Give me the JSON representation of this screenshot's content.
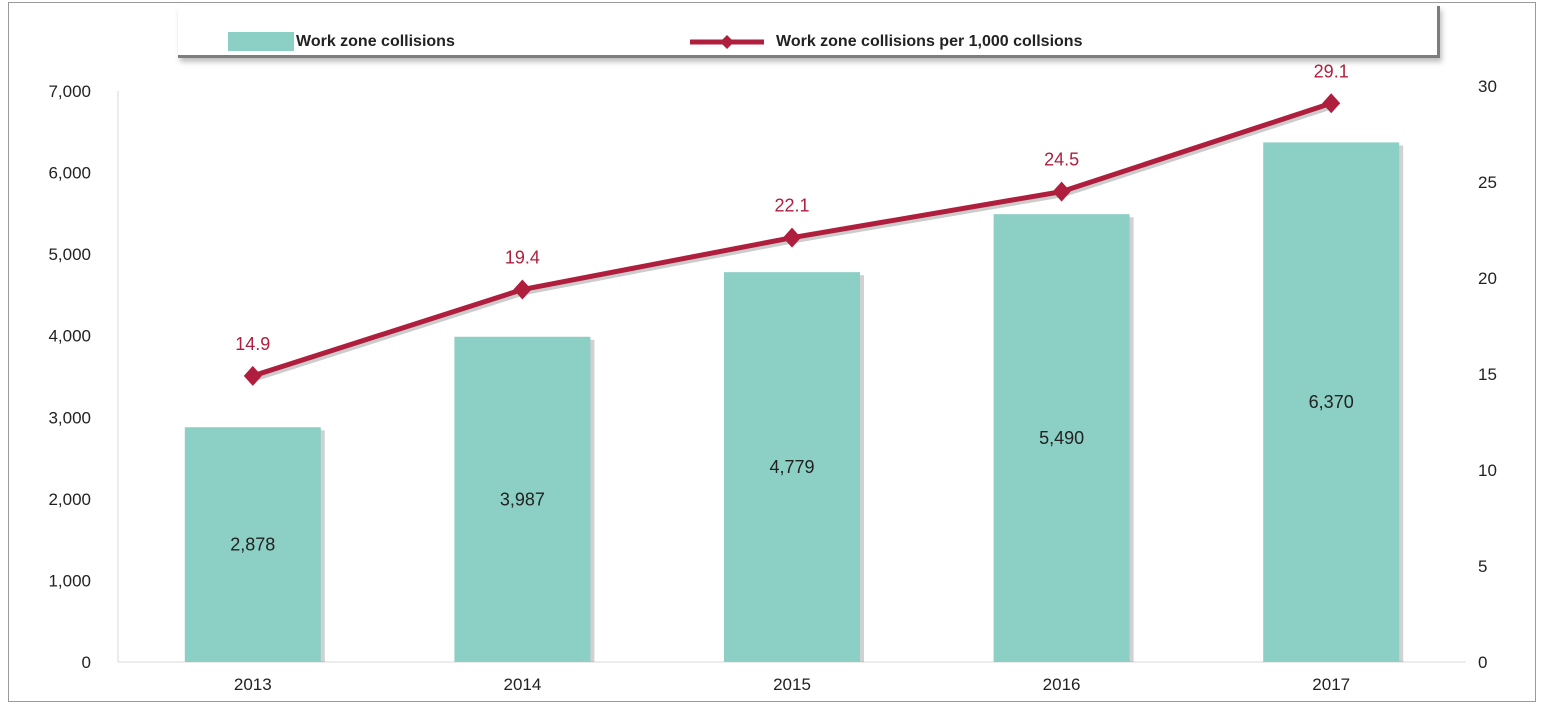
{
  "legend": {
    "bars_label": "Work zone collisions",
    "line_label": "Work zone collisions per 1,000 collsions"
  },
  "colors": {
    "bars": "#8ccfc4",
    "line": "#b01e3e",
    "line_labels": "#b01e3e",
    "axis_text": "#222222"
  },
  "chart_data": {
    "type": "bar",
    "categories": [
      "2013",
      "2014",
      "2015",
      "2016",
      "2017"
    ],
    "series": [
      {
        "name": "Work zone collisions",
        "type": "bar",
        "axis": "left",
        "values": [
          2878,
          3987,
          4779,
          5490,
          6370
        ],
        "data_labels": [
          "2,878",
          "3,987",
          "4,779",
          "5,490",
          "6,370"
        ]
      },
      {
        "name": "Work zone collisions per 1,000 collsions",
        "type": "line",
        "axis": "right",
        "values": [
          14.9,
          19.4,
          22.1,
          24.5,
          29.1
        ],
        "data_labels": [
          "14.9",
          "19.4",
          "22.1",
          "24.5",
          "29.1"
        ]
      }
    ],
    "y_left": {
      "ylim": [
        0,
        7000
      ],
      "ticks": [
        "0",
        "1,000",
        "2,000",
        "3,000",
        "4,000",
        "5,000",
        "6,000",
        "7,000"
      ]
    },
    "y_right": {
      "ylim": [
        0,
        30
      ],
      "ticks": [
        "0",
        "5",
        "10",
        "15",
        "20",
        "25",
        "30"
      ]
    },
    "grid": false,
    "legend_position": "top"
  }
}
